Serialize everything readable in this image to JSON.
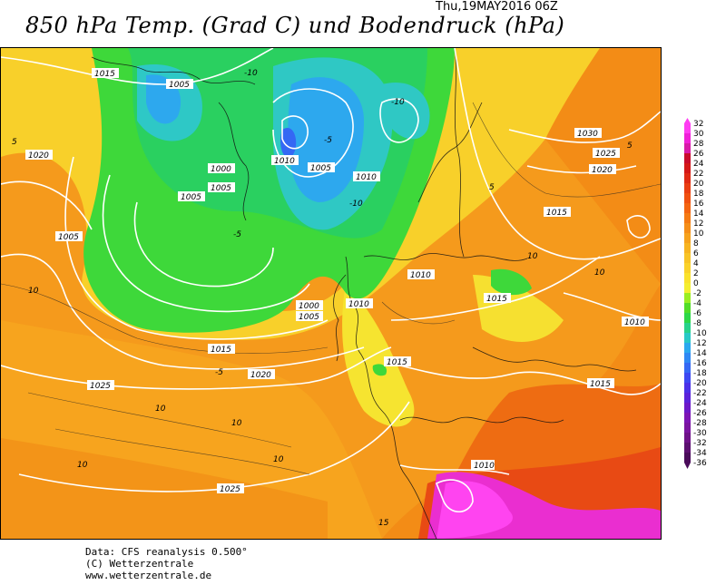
{
  "header": {
    "timestamp": "Thu,19MAY2016 06Z",
    "title": "850 hPa Temp. (Grad C) und Bodendruck (hPa)"
  },
  "footer": {
    "line1": "Data: CFS reanalysis 0.500°",
    "line2": "(C) Wetterzentrale",
    "line3": "www.wetterzentrale.de"
  },
  "legend": {
    "levels": [
      "32",
      "30",
      "28",
      "26",
      "24",
      "22",
      "20",
      "18",
      "16",
      "14",
      "12",
      "10",
      "8",
      "6",
      "4",
      "2",
      "0",
      "-2",
      "-4",
      "-6",
      "-8",
      "-10",
      "-12",
      "-14",
      "-16",
      "-18",
      "-20",
      "-22",
      "-24",
      "-26",
      "-28",
      "-30",
      "-32",
      "-34",
      "-36"
    ],
    "colors": [
      "#ff3cf2",
      "#f020d8",
      "#d81aa8",
      "#c80c2c",
      "#d41818",
      "#e02a14",
      "#ea3e12",
      "#f05010",
      "#f46410",
      "#f57a12",
      "#f58e18",
      "#f6a21c",
      "#f7b420",
      "#f8c426",
      "#fad22a",
      "#fae22c",
      "#f4ee30",
      "#9aee22",
      "#52dd28",
      "#2ed848",
      "#28d28a",
      "#28c8c6",
      "#2aa8ee",
      "#2e88f4",
      "#3468f4",
      "#3c48f2",
      "#4a30e8",
      "#5a22da",
      "#6c18c8",
      "#7c14b4",
      "#7a14a0",
      "#6e1288",
      "#5c1070",
      "#4a0c5a"
    ]
  },
  "map_labels": {
    "isobars": [
      "1015",
      "1005",
      "1000",
      "1005",
      "1020",
      "1005",
      "1010",
      "1005",
      "1010",
      "1005",
      "1020",
      "1030",
      "1025",
      "1020",
      "1015",
      "1010",
      "1000",
      "1005",
      "1010",
      "1015",
      "1015",
      "1015",
      "1020",
      "1025",
      "1025",
      "1015",
      "1010",
      "1010"
    ],
    "isotherms": [
      "-10",
      "-10",
      "-5",
      "10",
      "5",
      "10",
      "10",
      "5",
      "-5",
      "10",
      "-10",
      "-5",
      "5",
      "10",
      "10",
      "10",
      "15"
    ]
  }
}
